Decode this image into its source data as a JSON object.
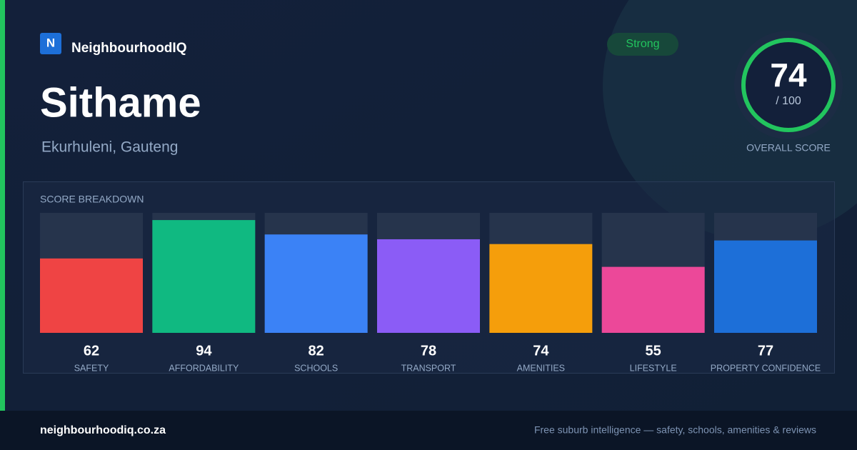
{
  "brand": {
    "logo": "N",
    "name": "NeighbourhoodIQ"
  },
  "suburb": {
    "name": "Sithame",
    "location": "Ekurhuleni, Gauteng"
  },
  "score": {
    "badge": "Strong",
    "value": 74,
    "out_of": "/ 100",
    "label": "OVERALL SCORE"
  },
  "chart_data": {
    "type": "bar",
    "title": "SCORE BREAKDOWN",
    "categories": [
      "SAFETY",
      "AFFORDABILITY",
      "SCHOOLS",
      "TRANSPORT",
      "AMENITIES",
      "LIFESTYLE",
      "PROPERTY CONFIDENCE"
    ],
    "values": [
      62,
      94,
      82,
      78,
      74,
      55,
      77
    ],
    "colors": [
      "#ef4444",
      "#10b981",
      "#3b82f6",
      "#8b5cf6",
      "#f59e0b",
      "#ec4899",
      "#1d6fd8"
    ],
    "ylim": [
      0,
      100
    ]
  },
  "footer": {
    "domain": "neighbourhoodiq.co.za",
    "tagline": "Free suburb intelligence — safety, schools, amenities & reviews"
  }
}
